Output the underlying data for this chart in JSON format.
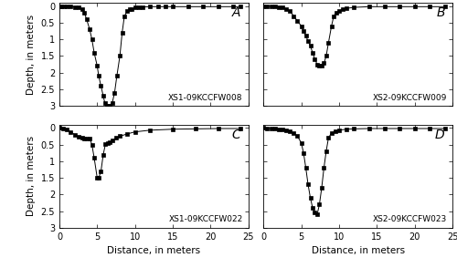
{
  "panel_A": {
    "label": "A",
    "annotation": "XS1-09KCCFW008",
    "x": [
      0,
      0.3,
      0.6,
      1.0,
      1.5,
      2.0,
      2.5,
      3.0,
      3.3,
      3.6,
      4.0,
      4.3,
      4.6,
      5.0,
      5.2,
      5.5,
      5.8,
      6.0,
      6.3,
      6.6,
      7.0,
      7.3,
      7.6,
      8.0,
      8.3,
      8.6,
      9.0,
      9.3,
      9.6,
      10.0,
      10.5,
      11.0,
      12.0,
      13.0,
      14.0,
      15.0,
      17.0,
      19.0,
      21.0,
      23.0,
      24.0
    ],
    "y": [
      0,
      0,
      -0.02,
      -0.02,
      -0.02,
      -0.03,
      -0.05,
      -0.1,
      -0.2,
      -0.4,
      -0.7,
      -1.0,
      -1.4,
      -1.8,
      -2.1,
      -2.4,
      -2.7,
      -2.9,
      -3.0,
      -3.0,
      -2.9,
      -2.6,
      -2.1,
      -1.5,
      -0.8,
      -0.3,
      -0.15,
      -0.1,
      -0.08,
      -0.05,
      -0.04,
      -0.03,
      -0.02,
      -0.02,
      -0.02,
      -0.02,
      -0.02,
      -0.02,
      -0.02,
      -0.02,
      -0.02
    ]
  },
  "panel_B": {
    "label": "B",
    "annotation": "XS2-09KCCFW009",
    "x": [
      0,
      0.5,
      1.0,
      1.5,
      2.0,
      2.5,
      3.0,
      3.5,
      4.0,
      4.5,
      5.0,
      5.3,
      5.6,
      5.9,
      6.2,
      6.5,
      6.8,
      7.1,
      7.4,
      7.7,
      8.0,
      8.3,
      8.6,
      9.0,
      9.3,
      9.6,
      10.0,
      10.5,
      11.0,
      12.0,
      14.0,
      16.0,
      18.0,
      20.0,
      22.0,
      24.0
    ],
    "y": [
      0,
      0,
      -0.02,
      -0.02,
      -0.03,
      -0.05,
      -0.08,
      -0.15,
      -0.3,
      -0.45,
      -0.6,
      -0.75,
      -0.9,
      -1.05,
      -1.2,
      -1.4,
      -1.6,
      -1.75,
      -1.8,
      -1.78,
      -1.72,
      -1.5,
      -1.1,
      -0.6,
      -0.3,
      -0.2,
      -0.15,
      -0.1,
      -0.07,
      -0.04,
      -0.02,
      -0.02,
      -0.02,
      -0.02,
      -0.02,
      -0.02
    ]
  },
  "panel_C": {
    "label": "C",
    "annotation": "XS1-09KCCFW022",
    "x": [
      0,
      0.5,
      1.0,
      1.5,
      2.0,
      2.5,
      3.0,
      3.3,
      3.6,
      4.0,
      4.3,
      4.6,
      5.0,
      5.2,
      5.5,
      5.8,
      6.1,
      6.4,
      6.7,
      7.0,
      7.5,
      8.0,
      9.0,
      10.0,
      12.0,
      15.0,
      18.0,
      21.0,
      24.0
    ],
    "y": [
      0,
      -0.02,
      -0.05,
      -0.12,
      -0.2,
      -0.27,
      -0.3,
      -0.32,
      -0.32,
      -0.32,
      -0.5,
      -0.9,
      -1.5,
      -1.5,
      -1.3,
      -0.8,
      -0.48,
      -0.45,
      -0.42,
      -0.38,
      -0.3,
      -0.25,
      -0.18,
      -0.12,
      -0.07,
      -0.04,
      -0.03,
      -0.02,
      -0.02
    ]
  },
  "panel_D": {
    "label": "D",
    "annotation": "XS2-09KCCFW023",
    "x": [
      0,
      0.5,
      1.0,
      1.5,
      2.0,
      2.5,
      3.0,
      3.5,
      4.0,
      4.5,
      5.0,
      5.3,
      5.6,
      5.9,
      6.2,
      6.5,
      6.8,
      7.1,
      7.4,
      7.7,
      8.0,
      8.3,
      8.6,
      9.0,
      9.5,
      10.0,
      11.0,
      12.0,
      14.0,
      16.0,
      18.0,
      20.0,
      22.0,
      24.0
    ],
    "y": [
      0,
      -0.02,
      -0.02,
      -0.03,
      -0.04,
      -0.05,
      -0.07,
      -0.1,
      -0.15,
      -0.25,
      -0.45,
      -0.75,
      -1.2,
      -1.7,
      -2.1,
      -2.4,
      -2.55,
      -2.6,
      -2.3,
      -1.8,
      -1.2,
      -0.7,
      -0.3,
      -0.15,
      -0.1,
      -0.07,
      -0.04,
      -0.03,
      -0.02,
      -0.02,
      -0.02,
      -0.02,
      -0.02,
      -0.02
    ]
  },
  "xlim": [
    0,
    25
  ],
  "ylim": [
    -3.0,
    0.1
  ],
  "yticks": [
    0,
    -0.5,
    -1.0,
    -1.5,
    -2.0,
    -2.5,
    -3.0
  ],
  "ytick_labels_left": [
    "0",
    "0.5",
    "1",
    "1.5",
    "2",
    "2.5",
    "3"
  ],
  "xticks": [
    0,
    5,
    10,
    15,
    20,
    25
  ],
  "xtick_labels": [
    "0",
    "5",
    "10",
    "15",
    "20",
    "25"
  ],
  "line_color": "#000000",
  "marker": "s",
  "markersize": 2.5,
  "linewidth": 0.7,
  "bg_color": "#ffffff",
  "xlabel": "Distance, in meters",
  "ylabel": "Depth, in meters",
  "annotation_fontsize": 6.5,
  "label_fontsize": 10,
  "tick_fontsize": 7,
  "axis_label_fontsize": 7.5
}
